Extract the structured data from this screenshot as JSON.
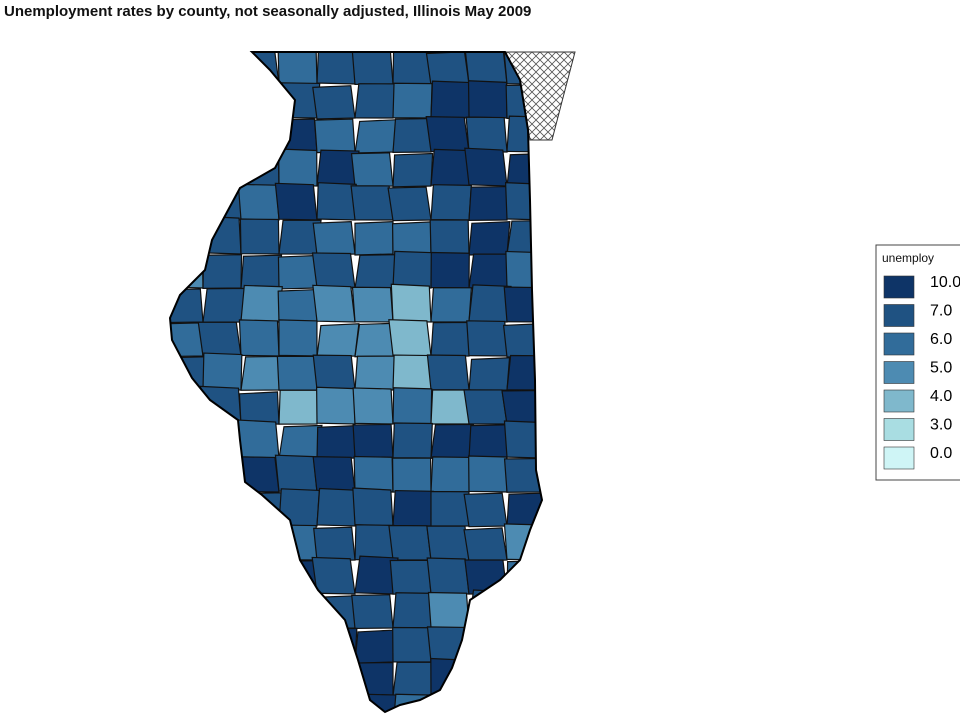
{
  "title": "Unemployment rates by county, not seasonally adjusted,  Illinois  May 2009",
  "legend": {
    "title": "unemploy",
    "items": [
      {
        "label": "10.0",
        "color": "#0e3467"
      },
      {
        "label": "7.0",
        "color": "#1f5282"
      },
      {
        "label": "6.0",
        "color": "#316c9a"
      },
      {
        "label": "5.0",
        "color": "#4d8bb2"
      },
      {
        "label": "4.0",
        "color": "#7fb8cc"
      },
      {
        "label": "3.0",
        "color": "#a9dde2"
      },
      {
        "label": "0.0",
        "color": "#cff5f6"
      }
    ]
  }
}
